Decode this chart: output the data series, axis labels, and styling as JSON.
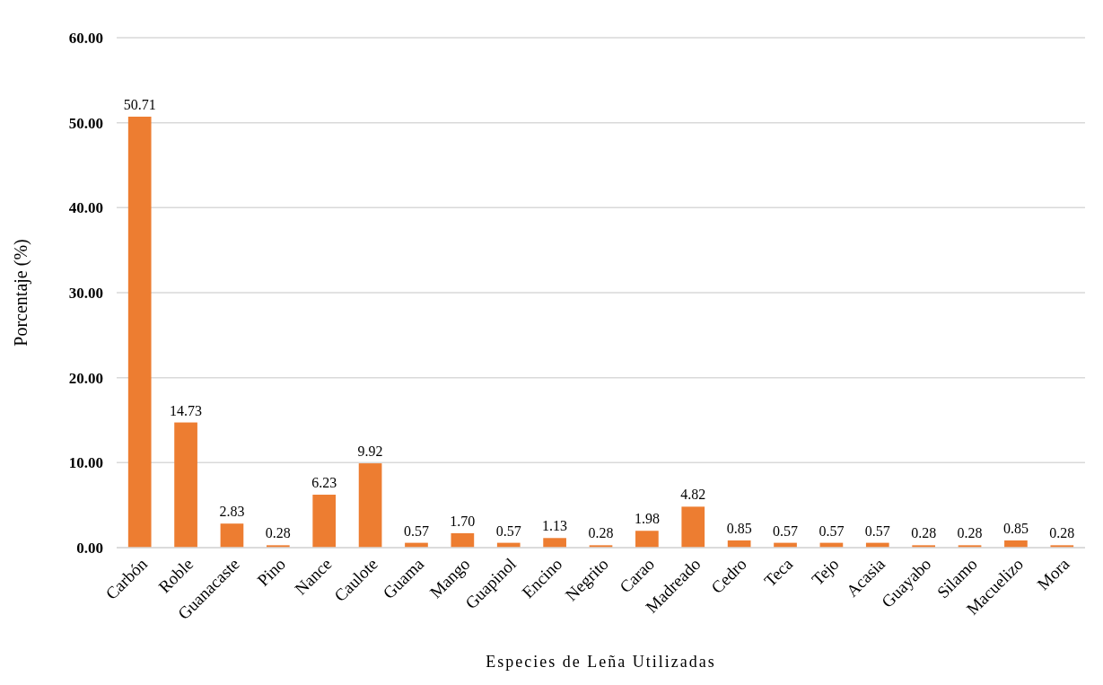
{
  "chart_data": {
    "type": "bar",
    "xlabel": "Especies de Leña Utilizadas",
    "ylabel": "Porcentaje (%)",
    "categories": [
      "Carbón",
      "Roble",
      "Guanacaste",
      "Pino",
      "Nance",
      "Caulote",
      "Guama",
      "Mango",
      "Guapinol",
      "Encino",
      "Negrito",
      "Carao",
      "Madreado",
      "Cedro",
      "Teca",
      "Tejo",
      "Acasia",
      "Guayabo",
      "Silamo",
      "Macuelizo",
      "Mora"
    ],
    "values": [
      50.71,
      14.73,
      2.83,
      0.28,
      6.23,
      9.92,
      0.57,
      1.7,
      0.57,
      1.13,
      0.28,
      1.98,
      4.82,
      0.85,
      0.57,
      0.57,
      0.57,
      0.28,
      0.28,
      0.85,
      0.28
    ],
    "value_labels": [
      "50.71",
      "14.73",
      "2.83",
      "0.28",
      "6.23",
      "9.92",
      "0.57",
      "1.70",
      "0.57",
      "1.13",
      "0.28",
      "1.98",
      "4.82",
      "0.85",
      "0.57",
      "0.57",
      "0.57",
      "0.28",
      "0.28",
      "0.85",
      "0.28"
    ],
    "color": "#ed7d31",
    "ylim": [
      0,
      60
    ],
    "yticks": [
      {
        "value": 0,
        "label": "0.00"
      },
      {
        "value": 10,
        "label": "10.00"
      },
      {
        "value": 20,
        "label": "20.00"
      },
      {
        "value": 30,
        "label": "30.00"
      },
      {
        "value": 40,
        "label": "40.00"
      },
      {
        "value": 50,
        "label": "50.00"
      },
      {
        "value": 60,
        "label": "60.00"
      }
    ],
    "grid": "y"
  }
}
